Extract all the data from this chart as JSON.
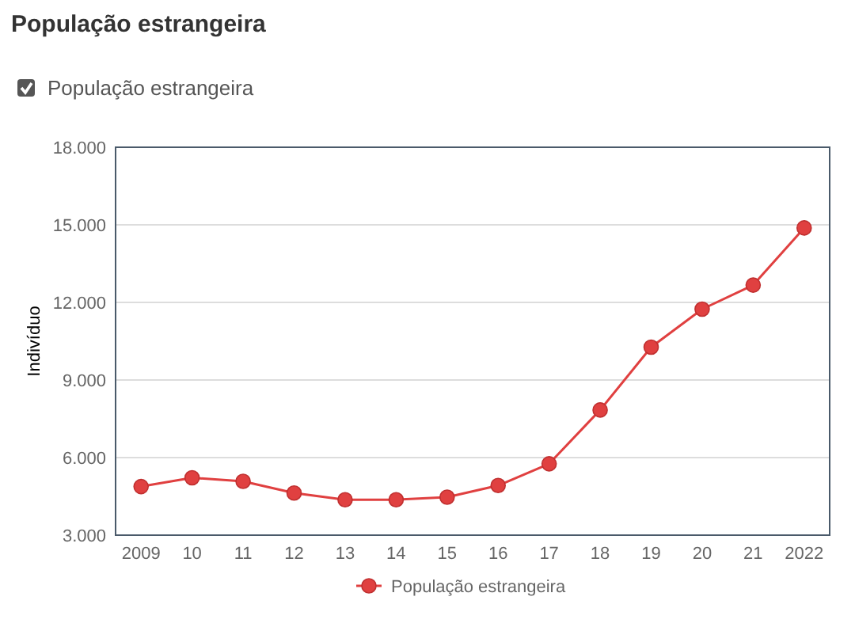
{
  "chart_data": {
    "type": "line",
    "title": "População estrangeira",
    "annotations": [
      "População estrangeira"
    ],
    "ylabel": "Indivíduo",
    "categories": [
      "2009",
      "10",
      "11",
      "12",
      "13",
      "14",
      "15",
      "16",
      "17",
      "18",
      "19",
      "20",
      "21",
      "2022"
    ],
    "series": [
      {
        "name": "População estrangeira",
        "color": "#e04040",
        "values": [
          4880,
          5220,
          5080,
          4630,
          4370,
          4370,
          4470,
          4920,
          5760,
          7840,
          10270,
          11740,
          12670,
          14880
        ]
      }
    ],
    "ylim": [
      3000,
      18000
    ],
    "yticks": [
      {
        "value": 3000,
        "label": "3.000"
      },
      {
        "value": 6000,
        "label": "6.000"
      },
      {
        "value": 9000,
        "label": "9.000"
      },
      {
        "value": 12000,
        "label": "12.000"
      },
      {
        "value": 15000,
        "label": "15.000"
      },
      {
        "value": 18000,
        "label": "18.000"
      }
    ],
    "grid": true,
    "legend": "bottom",
    "marker": "circle",
    "line_style": "solid"
  }
}
